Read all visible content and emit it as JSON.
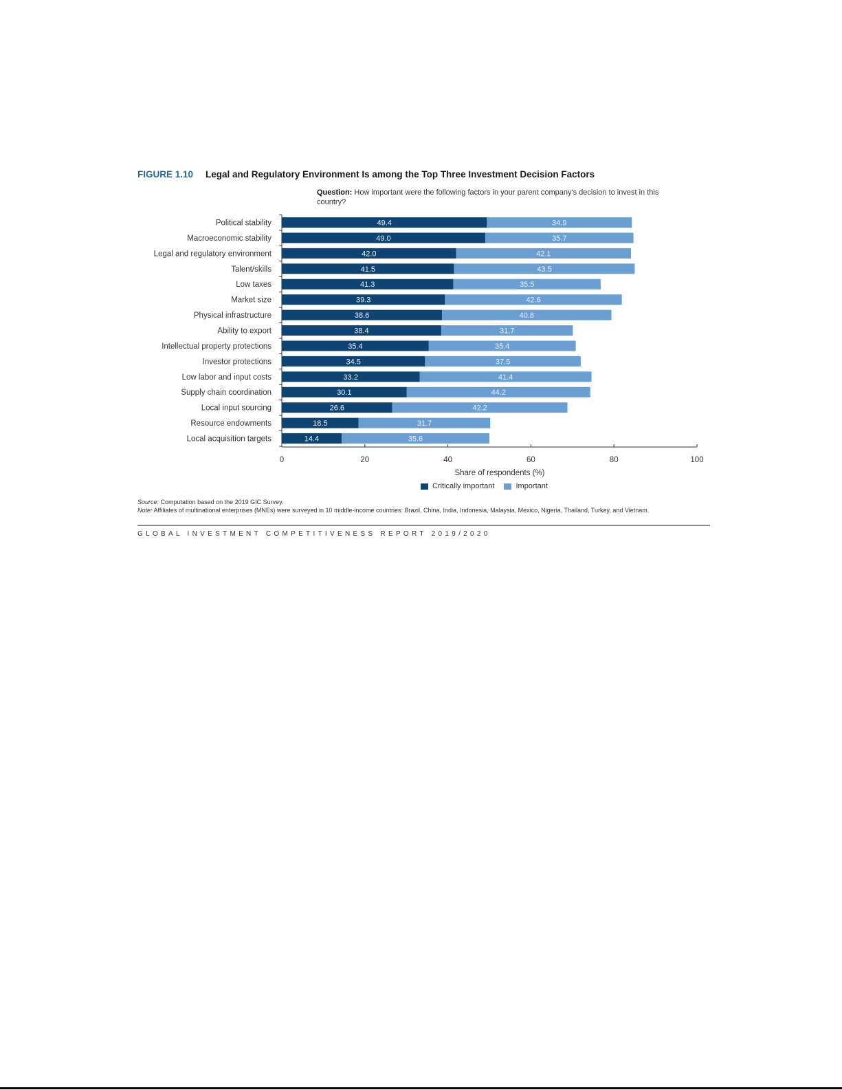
{
  "figure": {
    "number": "FIGURE 1.10",
    "title": "Legal and Regulatory Environment Is among the Top Three Investment Decision Factors",
    "question_label": "Question:",
    "question_text": "How important were the following factors in your parent company's decision to invest in this country?"
  },
  "chart_data": {
    "type": "bar",
    "orientation": "horizontal",
    "stacked": true,
    "categories": [
      "Political stability",
      "Macroeconomic stability",
      "Legal and regulatory environment",
      "Talent/skills",
      "Low taxes",
      "Market size",
      "Physical infrastructure",
      "Ability to export",
      "Intellectual property protections",
      "Investor protections",
      "Low labor and input costs",
      "Supply chain coordination",
      "Local input sourcing",
      "Resource endowments",
      "Local acquisition targets"
    ],
    "series": [
      {
        "name": "Critically important",
        "color": "#0e4474",
        "values": [
          49.4,
          49.0,
          42.0,
          41.5,
          41.3,
          39.3,
          38.6,
          38.4,
          35.4,
          34.5,
          33.2,
          30.1,
          26.6,
          18.5,
          14.4
        ]
      },
      {
        "name": "Important",
        "color": "#6a9fd4",
        "values": [
          34.9,
          35.7,
          42.1,
          43.5,
          35.5,
          42.6,
          40.8,
          31.7,
          35.4,
          37.5,
          41.4,
          44.2,
          42.2,
          31.7,
          35.6
        ]
      }
    ],
    "value_labels": {
      "Critically important": [
        "49.4",
        "49.0",
        "42.0",
        "41.5",
        "41.3",
        "39.3",
        "38.6",
        "38.4",
        "35.4",
        "34.5",
        "33.2",
        "30.1",
        "26.6",
        "18.5",
        "14.4"
      ],
      "Important": [
        "34.9",
        "35.7",
        "42.1",
        "43.5",
        "35.5",
        "42.6",
        "40.8",
        "31.7",
        "35.4",
        "37.5",
        "41.4",
        "44.2",
        "42.2",
        "31.7",
        "35.6"
      ]
    },
    "xlabel": "Share of respondents (%)",
    "xlim": [
      0,
      100
    ],
    "xticks": [
      "0",
      "20",
      "40",
      "60",
      "80",
      "100"
    ],
    "legend_position": "bottom",
    "grid": false
  },
  "source": {
    "label": "Source:",
    "text": "Computation based on the 2019 GIC Survey."
  },
  "note": {
    "label": "Note:",
    "text": "Affiliates of multinational enterprises (MNEs) were surveyed in 10 middle-income countries: Brazil, China, India, Indonesia, Malaysia, Mexico, Nigeria, Thailand, Turkey, and Vietnam."
  },
  "footer": "GLOBAL INVESTMENT COMPETITIVENESS REPORT 2019/2020"
}
